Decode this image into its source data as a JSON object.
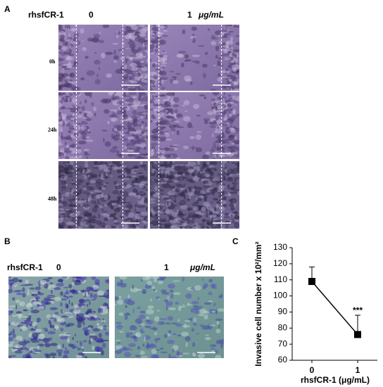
{
  "panel_a": {
    "label": "A",
    "treatment_label": "rhsfCR-1",
    "dose_0": "0",
    "dose_1": "1",
    "unit": "μg/mL",
    "rows": [
      "0h",
      "24h",
      "48h"
    ]
  },
  "panel_b": {
    "label": "B",
    "treatment_label": "rhsfCR-1",
    "dose_0": "0",
    "dose_1": "1",
    "unit": "μg/mL"
  },
  "chart_data": {
    "label": "C",
    "type": "line",
    "x_label": "rhsfCR-1 (μg/mL)",
    "y_label": "Invasive cell number x 10²/mm²",
    "categories": [
      "0",
      "1"
    ],
    "values": [
      109,
      76
    ],
    "errors": [
      9,
      12
    ],
    "annotation": "***",
    "color": "#000000",
    "ylim": [
      60,
      130
    ],
    "yticks": [
      60,
      70,
      80,
      90,
      100,
      110,
      120,
      130
    ]
  }
}
